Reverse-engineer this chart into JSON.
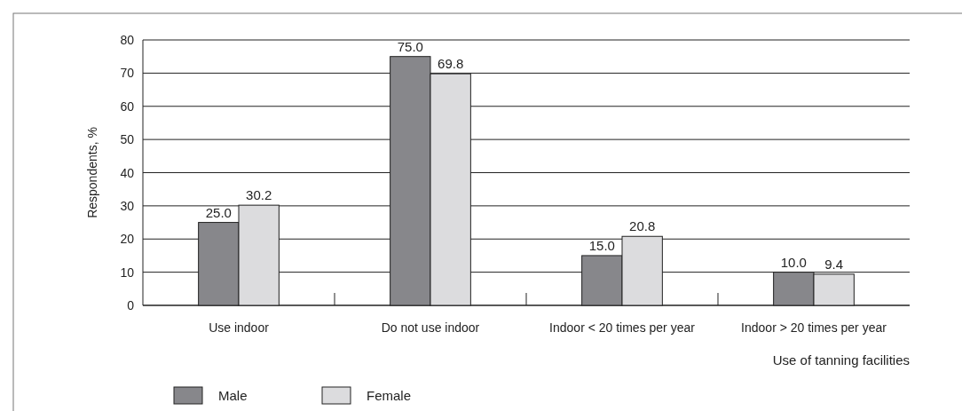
{
  "chart_data": {
    "type": "bar",
    "xlabel": "Use of tanning facilities",
    "ylabel": "Respondents, %",
    "categories": [
      "Use indoor",
      "Do not use indoor",
      "Indoor < 20 times per year",
      "Indoor > 20 times per year"
    ],
    "series": [
      {
        "name": "Male",
        "color": "#87878b",
        "values": [
          25.0,
          75.0,
          15.0,
          10.0
        ],
        "value_labels": [
          "25.0",
          "75.0",
          "15.0",
          "10.0"
        ]
      },
      {
        "name": "Female",
        "color": "#dcdcde",
        "values": [
          30.2,
          69.8,
          20.8,
          9.4
        ],
        "value_labels": [
          "30.2",
          "69.8",
          "20.8",
          "9.4"
        ]
      }
    ],
    "ylim": [
      0,
      80
    ],
    "yticks": [
      0,
      10,
      20,
      30,
      40,
      50,
      60,
      70,
      80
    ],
    "grid": "y",
    "legend": "bottom left"
  }
}
